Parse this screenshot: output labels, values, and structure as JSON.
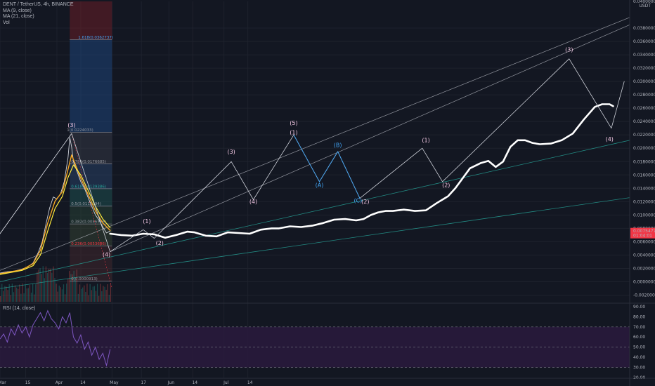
{
  "header": {
    "symbol_line": "DENT / TetherUS, 4h, BINANCE",
    "ma9": "MA (9, close)",
    "ma21": "MA (21, close)",
    "vol": "Vol",
    "rsi": "RSI (14, close)",
    "currency": "USDT"
  },
  "colors": {
    "background": "#131722",
    "wave_white": "#ffffff",
    "wave_label_pink": "#f5c9e6",
    "wave_label_blue": "#42a5f5",
    "ma_fast": "#f5a623",
    "ma_slow": "#ffeb3b",
    "rsi_line": "#7e57c2",
    "rsi_band": "#2a1a3d",
    "price_tag": "#f23645",
    "fib_blue": "#1e4e8c",
    "fib_red": "#7a1f27",
    "fib_green": "#1d5c4a",
    "channel_green": "#26a69a"
  },
  "price_tag": {
    "price": "0.0075477",
    "countdown": "01:04:01"
  },
  "price_axis_top": "0.0400000",
  "price_axis": [
    {
      "value": 0.038,
      "label": "0.0380000"
    },
    {
      "value": 0.036,
      "label": "0.0360000"
    },
    {
      "value": 0.034,
      "label": "0.0340000"
    },
    {
      "value": 0.032,
      "label": "0.0320000"
    },
    {
      "value": 0.03,
      "label": "0.0300000"
    },
    {
      "value": 0.028,
      "label": "0.0280000"
    },
    {
      "value": 0.026,
      "label": "0.0260000"
    },
    {
      "value": 0.024,
      "label": "0.0240000"
    },
    {
      "value": 0.022,
      "label": "0.0220000"
    },
    {
      "value": 0.02,
      "label": "0.0200000"
    },
    {
      "value": 0.018,
      "label": "0.0180000"
    },
    {
      "value": 0.016,
      "label": "0.0160000"
    },
    {
      "value": 0.014,
      "label": "0.0140000"
    },
    {
      "value": 0.012,
      "label": "0.0120000"
    },
    {
      "value": 0.01,
      "label": "0.0100000"
    },
    {
      "value": 0.008,
      "label": "0.0080000"
    },
    {
      "value": 0.006,
      "label": "0.0060000"
    },
    {
      "value": 0.004,
      "label": "0.0040000"
    },
    {
      "value": 0.002,
      "label": "0.0020000"
    },
    {
      "value": 0.0,
      "label": "0.0000000"
    },
    {
      "value": -0.002,
      "label": "-0.0020000"
    }
  ],
  "rsi_axis": [
    {
      "value": 90,
      "label": "90.00"
    },
    {
      "value": 80,
      "label": "80.00"
    },
    {
      "value": 70,
      "label": "70.00"
    },
    {
      "value": 60,
      "label": "60.00"
    },
    {
      "value": 50,
      "label": "50.00"
    },
    {
      "value": 40,
      "label": "40.00"
    },
    {
      "value": 30,
      "label": "30.00"
    },
    {
      "value": 20,
      "label": "20.00"
    }
  ],
  "time_axis": [
    {
      "day": 0,
      "label": "Mar"
    },
    {
      "day": 14,
      "label": "15"
    },
    {
      "day": 31,
      "label": "Apr"
    },
    {
      "day": 44,
      "label": "14"
    },
    {
      "day": 61,
      "label": "May"
    },
    {
      "day": 77,
      "label": "17"
    },
    {
      "day": 92,
      "label": "Jun"
    },
    {
      "day": 105,
      "label": "14"
    },
    {
      "day": 122,
      "label": "Jul"
    },
    {
      "day": 135,
      "label": "14"
    }
  ],
  "fib_levels": [
    {
      "ratio": "1.618",
      "price": 0.0362737,
      "label": "1.618(0.0362737)"
    },
    {
      "ratio": "1",
      "price": 0.0224033,
      "label": "1(0.0224033)"
    },
    {
      "ratio": "0.786",
      "price": 0.0176685,
      "label": "0.786(0.0176685)"
    },
    {
      "ratio": "0.618",
      "price": 0.0139386,
      "label": "0.618(0.0139386)"
    },
    {
      "ratio": "0.5",
      "price": 0.0113294,
      "label": "0.5(0.0113294)"
    },
    {
      "ratio": "0.382",
      "price": 0.0086536,
      "label": "0.382(0.0086536)"
    },
    {
      "ratio": "0.236",
      "price": 0.0053686,
      "label": "0.236(0.0053686)"
    },
    {
      "ratio": "0",
      "price": 9.13e-05,
      "label": "0(0.0000913)"
    }
  ],
  "wave_labels": [
    {
      "text": "(3)",
      "day": 39,
      "price": 0.0232,
      "color": "pink"
    },
    {
      "text": "(4)",
      "day": 58,
      "price": 0.0038,
      "color": "pink"
    },
    {
      "text": "(1)",
      "day": 80,
      "price": 0.0088,
      "color": "pink"
    },
    {
      "text": "(2)",
      "day": 87,
      "price": 0.0055,
      "color": "pink"
    },
    {
      "text": "(3)",
      "day": 126,
      "price": 0.0192,
      "color": "pink"
    },
    {
      "text": "(4)",
      "day": 138,
      "price": 0.0117,
      "color": "pink"
    },
    {
      "text": "(5)",
      "day": 160,
      "price": 0.0235,
      "color": "pink"
    },
    {
      "text": "(1)",
      "day": 160,
      "price": 0.0221,
      "color": "pink"
    },
    {
      "text": "(A)",
      "day": 174,
      "price": 0.0142,
      "color": "blue"
    },
    {
      "text": "(B)",
      "day": 184,
      "price": 0.0202,
      "color": "blue"
    },
    {
      "text": "(C)",
      "day": 195,
      "price": 0.0119,
      "color": "blue"
    },
    {
      "text": "(2)",
      "day": 199,
      "price": 0.0117,
      "color": "pink"
    },
    {
      "text": "(1)",
      "day": 232,
      "price": 0.0209,
      "color": "pink"
    },
    {
      "text": "(2)",
      "day": 243,
      "price": 0.0142,
      "color": "pink"
    },
    {
      "text": "(3)",
      "day": 310,
      "price": 0.0345,
      "color": "pink"
    },
    {
      "text": "(4)",
      "day": 332,
      "price": 0.0211,
      "color": "pink"
    }
  ],
  "chart_data": [
    {
      "type": "line",
      "title": "DENT / TetherUS, 4h, BINANCE",
      "xlabel": "",
      "ylabel": "",
      "ylim": [
        -0.003,
        0.042
      ],
      "x_unit": "days since 1 Mar",
      "series": [
        {
          "name": "DENT / TetherUS",
          "points": [
            [
              0,
              0.0013
            ],
            [
              4,
              0.0015
            ],
            [
              8,
              0.0016
            ],
            [
              12,
              0.0019
            ],
            [
              15,
              0.0022
            ],
            [
              18,
              0.0028
            ],
            [
              21,
              0.0045
            ],
            [
              23,
              0.006
            ],
            [
              25,
              0.0086
            ],
            [
              27,
              0.011
            ],
            [
              29,
              0.0127
            ],
            [
              31,
              0.0124
            ],
            [
              33,
              0.0132
            ],
            [
              35,
              0.015
            ],
            [
              37,
              0.0185
            ],
            [
              38,
              0.0216
            ],
            [
              39,
              0.0202
            ],
            [
              40,
              0.018
            ],
            [
              42,
              0.0165
            ],
            [
              44,
              0.015
            ],
            [
              46,
              0.014
            ],
            [
              48,
              0.0126
            ],
            [
              50,
              0.0113
            ],
            [
              52,
              0.01
            ],
            [
              54,
              0.0092
            ],
            [
              56,
              0.0082
            ],
            [
              58,
              0.0073
            ],
            [
              60,
              0.0076
            ]
          ]
        },
        {
          "name": "MA (9, close)",
          "points": [
            [
              0,
              0.0012
            ],
            [
              6,
              0.0015
            ],
            [
              12,
              0.0018
            ],
            [
              18,
              0.0027
            ],
            [
              22,
              0.0047
            ],
            [
              26,
              0.0088
            ],
            [
              30,
              0.0121
            ],
            [
              34,
              0.0135
            ],
            [
              37,
              0.0168
            ],
            [
              39,
              0.019
            ],
            [
              41,
              0.0176
            ],
            [
              44,
              0.0155
            ],
            [
              48,
              0.0131
            ],
            [
              52,
              0.0106
            ],
            [
              56,
              0.0088
            ],
            [
              60,
              0.0077
            ]
          ]
        },
        {
          "name": "MA (21, close)",
          "points": [
            [
              0,
              0.0011
            ],
            [
              6,
              0.0014
            ],
            [
              12,
              0.0017
            ],
            [
              18,
              0.0024
            ],
            [
              22,
              0.004
            ],
            [
              26,
              0.0076
            ],
            [
              30,
              0.011
            ],
            [
              34,
              0.0128
            ],
            [
              37,
              0.0156
            ],
            [
              40,
              0.0175
            ],
            [
              44,
              0.016
            ],
            [
              48,
              0.0137
            ],
            [
              52,
              0.0113
            ],
            [
              56,
              0.0094
            ],
            [
              60,
              0.0081
            ]
          ]
        },
        {
          "name": "Projection",
          "points": [
            [
              60,
              0.0072
            ],
            [
              66,
              0.007
            ],
            [
              72,
              0.0069
            ],
            [
              78,
              0.0072
            ],
            [
              84,
              0.0071
            ],
            [
              90,
              0.0066
            ],
            [
              96,
              0.007
            ],
            [
              102,
              0.0075
            ],
            [
              106,
              0.0074
            ],
            [
              112,
              0.0069
            ],
            [
              118,
              0.0068
            ],
            [
              124,
              0.0074
            ],
            [
              130,
              0.0073
            ],
            [
              136,
              0.0072
            ],
            [
              142,
              0.0078
            ],
            [
              148,
              0.008
            ],
            [
              152,
              0.008
            ],
            [
              158,
              0.0083
            ],
            [
              164,
              0.0082
            ],
            [
              170,
              0.0084
            ],
            [
              176,
              0.0088
            ],
            [
              182,
              0.0093
            ],
            [
              188,
              0.0094
            ],
            [
              194,
              0.0092
            ],
            [
              198,
              0.0094
            ],
            [
              202,
              0.01
            ],
            [
              206,
              0.0104
            ],
            [
              210,
              0.0106
            ],
            [
              214,
              0.0106
            ],
            [
              220,
              0.0108
            ],
            [
              226,
              0.0106
            ],
            [
              232,
              0.0107
            ],
            [
              238,
              0.0118
            ],
            [
              244,
              0.0128
            ],
            [
              248,
              0.014
            ],
            [
              252,
              0.0155
            ],
            [
              256,
              0.017
            ],
            [
              262,
              0.0178
            ],
            [
              266,
              0.0181
            ],
            [
              270,
              0.0172
            ],
            [
              274,
              0.018
            ],
            [
              278,
              0.0202
            ],
            [
              282,
              0.0212
            ],
            [
              286,
              0.0212
            ],
            [
              290,
              0.0208
            ],
            [
              294,
              0.0206
            ],
            [
              300,
              0.0207
            ],
            [
              306,
              0.0212
            ],
            [
              312,
              0.0222
            ],
            [
              318,
              0.0243
            ],
            [
              324,
              0.0262
            ],
            [
              328,
              0.0266
            ],
            [
              332,
              0.0266
            ],
            [
              334,
              0.0263
            ]
          ]
        },
        {
          "name": "Wave path",
          "points": [
            [
              0,
              0.0072
            ],
            [
              39,
              0.0222
            ],
            [
              60,
              0.0045
            ],
            [
              78,
              0.0078
            ],
            [
              84,
              0.0065
            ],
            [
              126,
              0.018
            ],
            [
              138,
              0.0123
            ],
            [
              160,
              0.022
            ],
            [
              174,
              0.015
            ],
            [
              184,
              0.0195
            ],
            [
              196,
              0.0125
            ],
            [
              230,
              0.02
            ],
            [
              241,
              0.015
            ],
            [
              310,
              0.0334
            ],
            [
              333,
              0.023
            ],
            [
              340,
              0.03
            ]
          ]
        }
      ]
    },
    {
      "type": "line",
      "title": "RSI (14, close)",
      "ylim": [
        20,
        92
      ],
      "series": [
        {
          "name": "RSI (14, close)",
          "points": [
            [
              0,
              58
            ],
            [
              2,
              63
            ],
            [
              4,
              55
            ],
            [
              6,
              68
            ],
            [
              8,
              62
            ],
            [
              10,
              72
            ],
            [
              12,
              64
            ],
            [
              14,
              70
            ],
            [
              16,
              60
            ],
            [
              18,
              72
            ],
            [
              20,
              78
            ],
            [
              22,
              84
            ],
            [
              24,
              76
            ],
            [
              26,
              86
            ],
            [
              28,
              78
            ],
            [
              30,
              74
            ],
            [
              32,
              68
            ],
            [
              34,
              80
            ],
            [
              36,
              74
            ],
            [
              38,
              84
            ],
            [
              40,
              60
            ],
            [
              42,
              54
            ],
            [
              44,
              62
            ],
            [
              46,
              48
            ],
            [
              48,
              55
            ],
            [
              50,
              42
            ],
            [
              52,
              50
            ],
            [
              54,
              38
            ],
            [
              56,
              44
            ],
            [
              58,
              32
            ],
            [
              60,
              48
            ]
          ]
        }
      ]
    }
  ]
}
